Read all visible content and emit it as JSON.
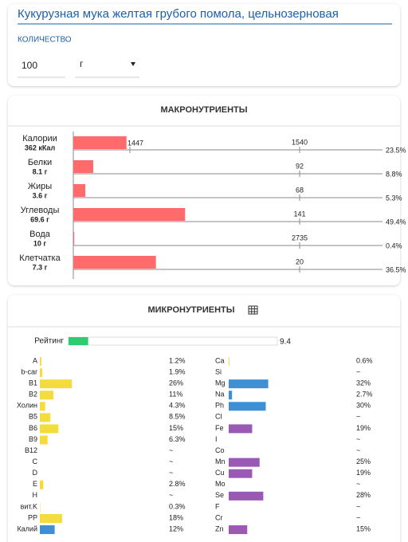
{
  "header": {
    "title": "Кукурузная мука желтая грубого помола, цельнозерновая"
  },
  "quantity": {
    "label": "КОЛИЧЕСТВО",
    "amount": "100",
    "unit": "г"
  },
  "macro": {
    "title": "МАКРОНУТРИЕНТЫ",
    "min_label": "min 1447",
    "color": "#ff6b6b",
    "rows": [
      {
        "name": "Калории",
        "amount": "362 кКал",
        "norm": 1540,
        "percent": 23.5,
        "percent_label": "23.5%"
      },
      {
        "name": "Белки",
        "amount": "8.1 г",
        "norm": 92,
        "percent": 8.8,
        "percent_label": "8.8%"
      },
      {
        "name": "Жиры",
        "amount": "3.6 г",
        "norm": 68,
        "percent": 5.3,
        "percent_label": "5.3%"
      },
      {
        "name": "Углеводы",
        "amount": "69.6 г",
        "norm": 141,
        "percent": 49.4,
        "percent_label": "49.4%"
      },
      {
        "name": "Вода",
        "amount": "10 г",
        "norm": 2735,
        "percent": 0.4,
        "percent_label": "0.4%"
      },
      {
        "name": "Клетчатка",
        "amount": "7.3 г",
        "norm": 20,
        "percent": 36.5,
        "percent_label": "36.5%"
      }
    ]
  },
  "micro": {
    "title": "МИКРОНУТРИЕНТЫ",
    "rating": {
      "label": "Рейтинг",
      "value": 9.4,
      "color": "#2ecc71"
    },
    "columns": [
      [
        {
          "name": "A",
          "value": 1.2,
          "value_label": "1.2%",
          "color": "#f4dc3c"
        },
        {
          "name": "b-car",
          "value": 1.9,
          "value_label": "1.9%",
          "color": "#f4dc3c"
        },
        {
          "name": "B1",
          "value": 26,
          "value_label": "26%",
          "color": "#f4dc3c"
        },
        {
          "name": "B2",
          "value": 11,
          "value_label": "11%",
          "color": "#f4dc3c"
        },
        {
          "name": "Холин",
          "value": 4.3,
          "value_label": "4.3%",
          "color": "#f4dc3c"
        },
        {
          "name": "B5",
          "value": 8.5,
          "value_label": "8.5%",
          "color": "#f4dc3c"
        },
        {
          "name": "B6",
          "value": 15,
          "value_label": "15%",
          "color": "#f4dc3c"
        },
        {
          "name": "B9",
          "value": 6.3,
          "value_label": "6.3%",
          "color": "#f4dc3c"
        },
        {
          "name": "B12",
          "value": null,
          "value_label": "~"
        },
        {
          "name": "C",
          "value": null,
          "value_label": "~"
        },
        {
          "name": "D",
          "value": null,
          "value_label": "~"
        },
        {
          "name": "E",
          "value": 2.8,
          "value_label": "2.8%",
          "color": "#f4dc3c"
        },
        {
          "name": "H",
          "value": null,
          "value_label": "~"
        },
        {
          "name": "вит.K",
          "value": 0.3,
          "value_label": "0.3%",
          "color": "#f4dc3c"
        },
        {
          "name": "PP",
          "value": 18,
          "value_label": "18%",
          "color": "#f4dc3c"
        },
        {
          "name": "Калий",
          "value": 12,
          "value_label": "12%",
          "color": "#3d8fd6"
        }
      ],
      [
        {
          "name": "Ca",
          "value": 0.6,
          "value_label": "0.6%",
          "color": "#f4dc3c"
        },
        {
          "name": "Si",
          "value": null,
          "value_label": "~"
        },
        {
          "name": "Mg",
          "value": 32,
          "value_label": "32%",
          "color": "#3d8fd6"
        },
        {
          "name": "Na",
          "value": 2.7,
          "value_label": "2.7%",
          "color": "#3d8fd6"
        },
        {
          "name": "Ph",
          "value": 30,
          "value_label": "30%",
          "color": "#3d8fd6"
        },
        {
          "name": "Cl",
          "value": null,
          "value_label": "~"
        },
        {
          "name": "Fe",
          "value": 19,
          "value_label": "19%",
          "color": "#9b59b6"
        },
        {
          "name": "I",
          "value": null,
          "value_label": "~"
        },
        {
          "name": "Co",
          "value": null,
          "value_label": "~"
        },
        {
          "name": "Mn",
          "value": 25,
          "value_label": "25%",
          "color": "#9b59b6"
        },
        {
          "name": "Cu",
          "value": 19,
          "value_label": "19%",
          "color": "#9b59b6"
        },
        {
          "name": "Mo",
          "value": null,
          "value_label": "~"
        },
        {
          "name": "Se",
          "value": 28,
          "value_label": "28%",
          "color": "#9b59b6"
        },
        {
          "name": "F",
          "value": null,
          "value_label": "~"
        },
        {
          "name": "Cr",
          "value": null,
          "value_label": "~"
        },
        {
          "name": "Zn",
          "value": 15,
          "value_label": "15%",
          "color": "#9b59b6"
        }
      ]
    ]
  }
}
